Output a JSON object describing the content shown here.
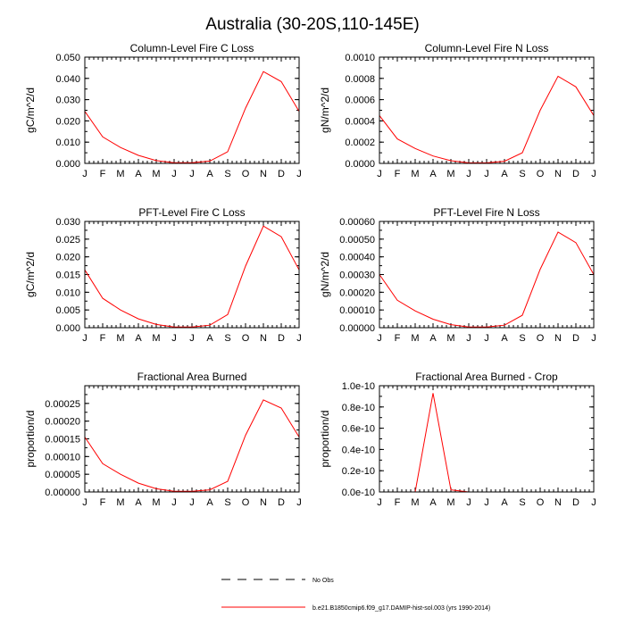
{
  "title": "Australia (30-20S,110-145E)",
  "legend": {
    "obs_label": "No Obs",
    "model_label": "b.e21.B1850cmip6.f09_g17.DAMIP-hist-sol.003 (yrs 1990-2014)"
  },
  "colors": {
    "model": "#ff0000",
    "axis": "#000000"
  },
  "chart_data": [
    {
      "type": "line",
      "title": "Column-Level Fire C Loss",
      "ylabel": "gC/m^2/d",
      "ylim": [
        0,
        0.05
      ],
      "categories": [
        "J",
        "F",
        "M",
        "A",
        "M",
        "J",
        "J",
        "A",
        "S",
        "O",
        "N",
        "D",
        "J"
      ],
      "yticks": [
        "0.000",
        "0.010",
        "0.020",
        "0.030",
        "0.040",
        "0.050"
      ],
      "series": [
        {
          "values": [
            0.0245,
            0.0125,
            0.0075,
            0.0038,
            0.0013,
            0.0003,
            0.0003,
            0.0011,
            0.0055,
            0.026,
            0.0432,
            0.0385,
            0.0245
          ]
        }
      ]
    },
    {
      "type": "line",
      "title": "Column-Level Fire N Loss",
      "ylabel": "gN/m^2/d",
      "ylim": [
        0,
        0.001
      ],
      "categories": [
        "J",
        "F",
        "M",
        "A",
        "M",
        "J",
        "J",
        "A",
        "S",
        "O",
        "N",
        "D",
        "J"
      ],
      "yticks": [
        "0.0000",
        "0.0002",
        "0.0004",
        "0.0006",
        "0.0008",
        "0.0010"
      ],
      "series": [
        {
          "values": [
            0.00045,
            0.00023,
            0.00014,
            7e-05,
            2.5e-05,
            5e-06,
            5e-06,
            2e-05,
            0.0001,
            0.0005,
            0.00082,
            0.00072,
            0.00045
          ]
        }
      ]
    },
    {
      "type": "line",
      "title": "PFT-Level Fire C Loss",
      "ylabel": "gC/m^2/d",
      "ylim": [
        0,
        0.03
      ],
      "categories": [
        "J",
        "F",
        "M",
        "A",
        "M",
        "J",
        "J",
        "A",
        "S",
        "O",
        "N",
        "D",
        "J"
      ],
      "yticks": [
        "0.000",
        "0.005",
        "0.010",
        "0.015",
        "0.020",
        "0.025",
        "0.030"
      ],
      "series": [
        {
          "values": [
            0.0163,
            0.0083,
            0.005,
            0.0025,
            0.0009,
            0.0002,
            0.0002,
            0.0007,
            0.0037,
            0.0174,
            0.0287,
            0.0257,
            0.0163
          ]
        }
      ]
    },
    {
      "type": "line",
      "title": "PFT-Level Fire N Loss",
      "ylabel": "gN/m^2/d",
      "ylim": [
        0,
        0.0006
      ],
      "categories": [
        "J",
        "F",
        "M",
        "A",
        "M",
        "J",
        "J",
        "A",
        "S",
        "O",
        "N",
        "D",
        "J"
      ],
      "yticks": [
        "0.00000",
        "0.00010",
        "0.00020",
        "0.00030",
        "0.00040",
        "0.00050",
        "0.00060"
      ],
      "series": [
        {
          "values": [
            0.0003,
            0.000155,
            9.5e-05,
            4.8e-05,
            1.7e-05,
            4e-06,
            4e-06,
            1.4e-05,
            7e-05,
            0.00033,
            0.00054,
            0.00048,
            0.0003
          ]
        }
      ]
    },
    {
      "type": "line",
      "title": "Fractional Area Burned",
      "ylabel": "proportion/d",
      "ylim": [
        0,
        0.0003
      ],
      "categories": [
        "J",
        "F",
        "M",
        "A",
        "M",
        "J",
        "J",
        "A",
        "S",
        "O",
        "N",
        "D",
        "J"
      ],
      "yticks": [
        "0.00000",
        "0.00005",
        "0.00010",
        "0.00015",
        "0.00020",
        "0.00025"
      ],
      "series": [
        {
          "values": [
            0.000155,
            8e-05,
            5e-05,
            2.5e-05,
            9e-06,
            2e-06,
            2e-06,
            6e-06,
            3e-05,
            0.00016,
            0.00026,
            0.000237,
            0.000155
          ]
        }
      ]
    },
    {
      "type": "line",
      "title": "Fractional Area Burned - Crop",
      "ylabel": "proportion/d",
      "ylim": [
        0,
        1e-10
      ],
      "categories": [
        "J",
        "F",
        "M",
        "A",
        "M",
        "J",
        "J",
        "A",
        "S",
        "O",
        "N",
        "D",
        "J"
      ],
      "yticks": [
        "0.0e-10",
        "0.2e-10",
        "0.4e-10",
        "0.6e-10",
        "0.8e-10",
        "1.0e-10"
      ],
      "series": [
        {
          "values": [
            0,
            0,
            0,
            9.3e-11,
            2e-12,
            0,
            0,
            0,
            0,
            0,
            0,
            0,
            0
          ]
        }
      ]
    }
  ]
}
